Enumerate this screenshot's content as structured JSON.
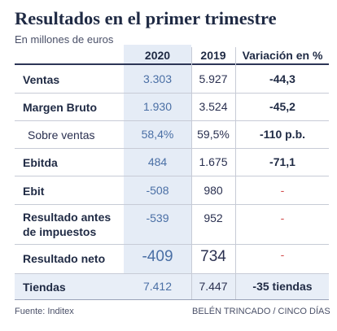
{
  "title": "Resultados en el primer trimestre",
  "subtitle": "En millones de euros",
  "footer": {
    "source": "Fuente: Inditex",
    "credit": "BELÉN TRINCADO / CINCO DÍAS"
  },
  "chart_data": {
    "type": "table",
    "columns": [
      "2020",
      "2019",
      "Variación en %"
    ],
    "rows": [
      {
        "label": "Ventas",
        "v2020": "3.303",
        "v2019": "5.927",
        "variation": "-44,3"
      },
      {
        "label": "Margen Bruto",
        "v2020": "1.930",
        "v2019": "3.524",
        "variation": "-45,2"
      },
      {
        "label": "Sobre ventas",
        "v2020": "58,4%",
        "v2019": "59,5%",
        "variation": "-110 p.b."
      },
      {
        "label": "Ebitda",
        "v2020": "484",
        "v2019": "1.675",
        "variation": "-71,1"
      },
      {
        "label": "Ebit",
        "v2020": "-508",
        "v2019": "980",
        "variation": "-"
      },
      {
        "label": "Resultado antes de impuestos",
        "v2020": "-539",
        "v2019": "952",
        "variation": "-"
      },
      {
        "label": "Resultado neto",
        "v2020": "-409",
        "v2019": "734",
        "variation": "-"
      },
      {
        "label": "Tiendas",
        "v2020": "7.412",
        "v2019": "7.447",
        "variation": "-35 tiendas"
      }
    ]
  }
}
